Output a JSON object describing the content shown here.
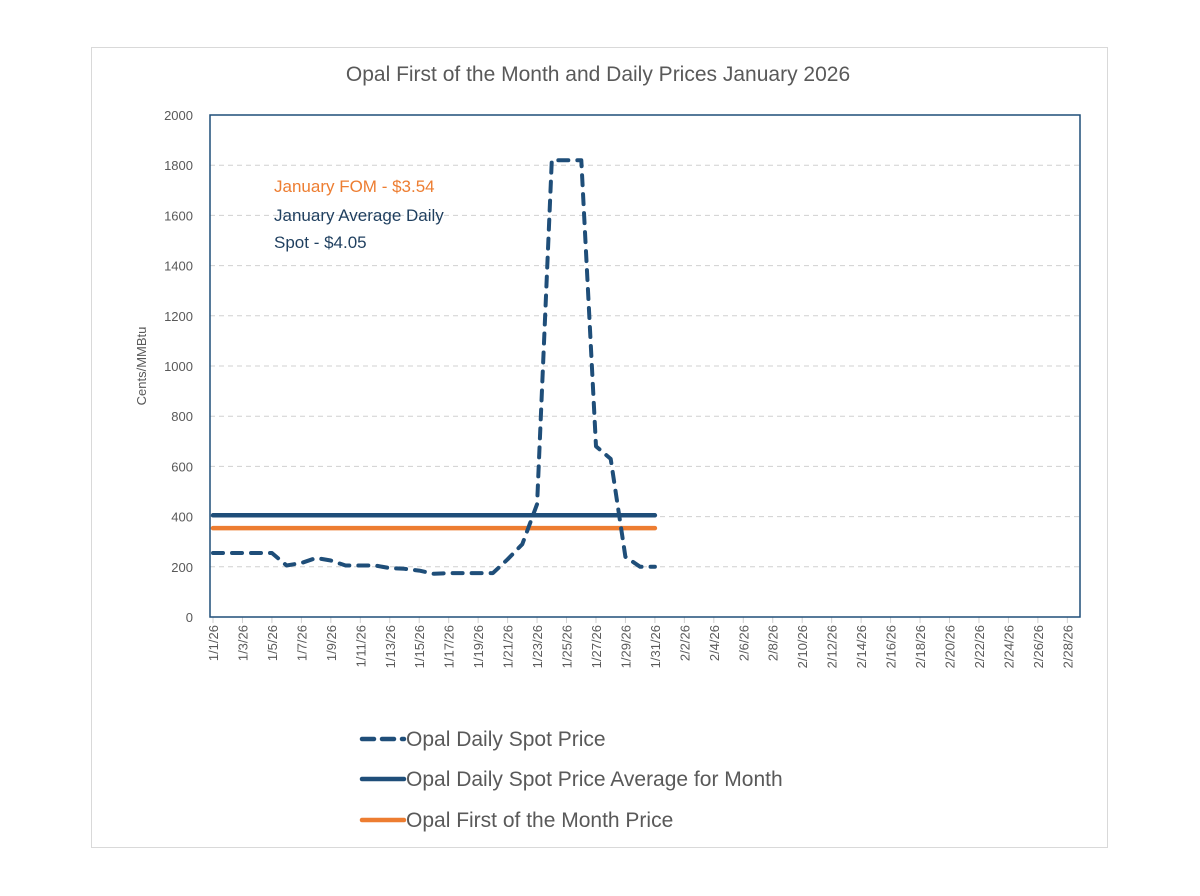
{
  "chart_data": {
    "type": "line",
    "title": "Opal First of the Month and Daily Prices January 2026",
    "xlabel": "",
    "ylabel": "Cents/MMBtu",
    "ylim": [
      0,
      2000
    ],
    "yticks": [
      0,
      200,
      400,
      600,
      800,
      1000,
      1200,
      1400,
      1600,
      1800,
      2000
    ],
    "grid": true,
    "legend_position": "bottom",
    "x_tick_labels": [
      "1/1/26",
      "1/3/26",
      "1/5/26",
      "1/7/26",
      "1/9/26",
      "1/11/26",
      "1/13/26",
      "1/15/26",
      "1/17/26",
      "1/19/26",
      "1/21/26",
      "1/23/26",
      "1/25/26",
      "1/27/26",
      "1/29/26",
      "1/31/26",
      "2/2/26",
      "2/4/26",
      "2/6/26",
      "2/8/26",
      "2/10/26",
      "2/12/26",
      "2/14/26",
      "2/16/26",
      "2/18/26",
      "2/20/26",
      "2/22/26",
      "2/24/26",
      "2/26/26",
      "2/28/26"
    ],
    "x_range_days": [
      1,
      59
    ],
    "x": [
      "1/1/26",
      "1/2/26",
      "1/3/26",
      "1/4/26",
      "1/5/26",
      "1/6/26",
      "1/7/26",
      "1/8/26",
      "1/9/26",
      "1/10/26",
      "1/11/26",
      "1/12/26",
      "1/13/26",
      "1/14/26",
      "1/15/26",
      "1/16/26",
      "1/17/26",
      "1/18/26",
      "1/19/26",
      "1/20/26",
      "1/21/26",
      "1/22/26",
      "1/23/26",
      "1/24/26",
      "1/25/26",
      "1/26/26",
      "1/27/26",
      "1/28/26",
      "1/29/26",
      "1/30/26",
      "1/31/26"
    ],
    "series": [
      {
        "name": "Opal Daily Spot Price",
        "color": "#1f4e79",
        "style": "dashed",
        "values": [
          255,
          255,
          255,
          255,
          255,
          205,
          215,
          235,
          225,
          205,
          205,
          205,
          195,
          192,
          185,
          172,
          175,
          175,
          175,
          175,
          230,
          290,
          450,
          1820,
          1820,
          1820,
          680,
          630,
          240,
          200,
          200
        ]
      },
      {
        "name": "Opal Daily Spot Price Average for Month",
        "color": "#1f4e79",
        "style": "solid",
        "values": [
          405,
          405,
          405,
          405,
          405,
          405,
          405,
          405,
          405,
          405,
          405,
          405,
          405,
          405,
          405,
          405,
          405,
          405,
          405,
          405,
          405,
          405,
          405,
          405,
          405,
          405,
          405,
          405,
          405,
          405,
          405
        ]
      },
      {
        "name": "Opal First of the Month Price",
        "color": "#ed7d31",
        "style": "solid",
        "values": [
          354,
          354,
          354,
          354,
          354,
          354,
          354,
          354,
          354,
          354,
          354,
          354,
          354,
          354,
          354,
          354,
          354,
          354,
          354,
          354,
          354,
          354,
          354,
          354,
          354,
          354,
          354,
          354,
          354,
          354,
          354
        ]
      }
    ],
    "annotations": [
      {
        "text": "January FOM - $3.54",
        "color": "#ed7d31"
      },
      {
        "text": "January Average Daily",
        "color": "#1f3f5f"
      },
      {
        "text": "Spot - $4.05",
        "color": "#1f3f5f"
      }
    ]
  }
}
